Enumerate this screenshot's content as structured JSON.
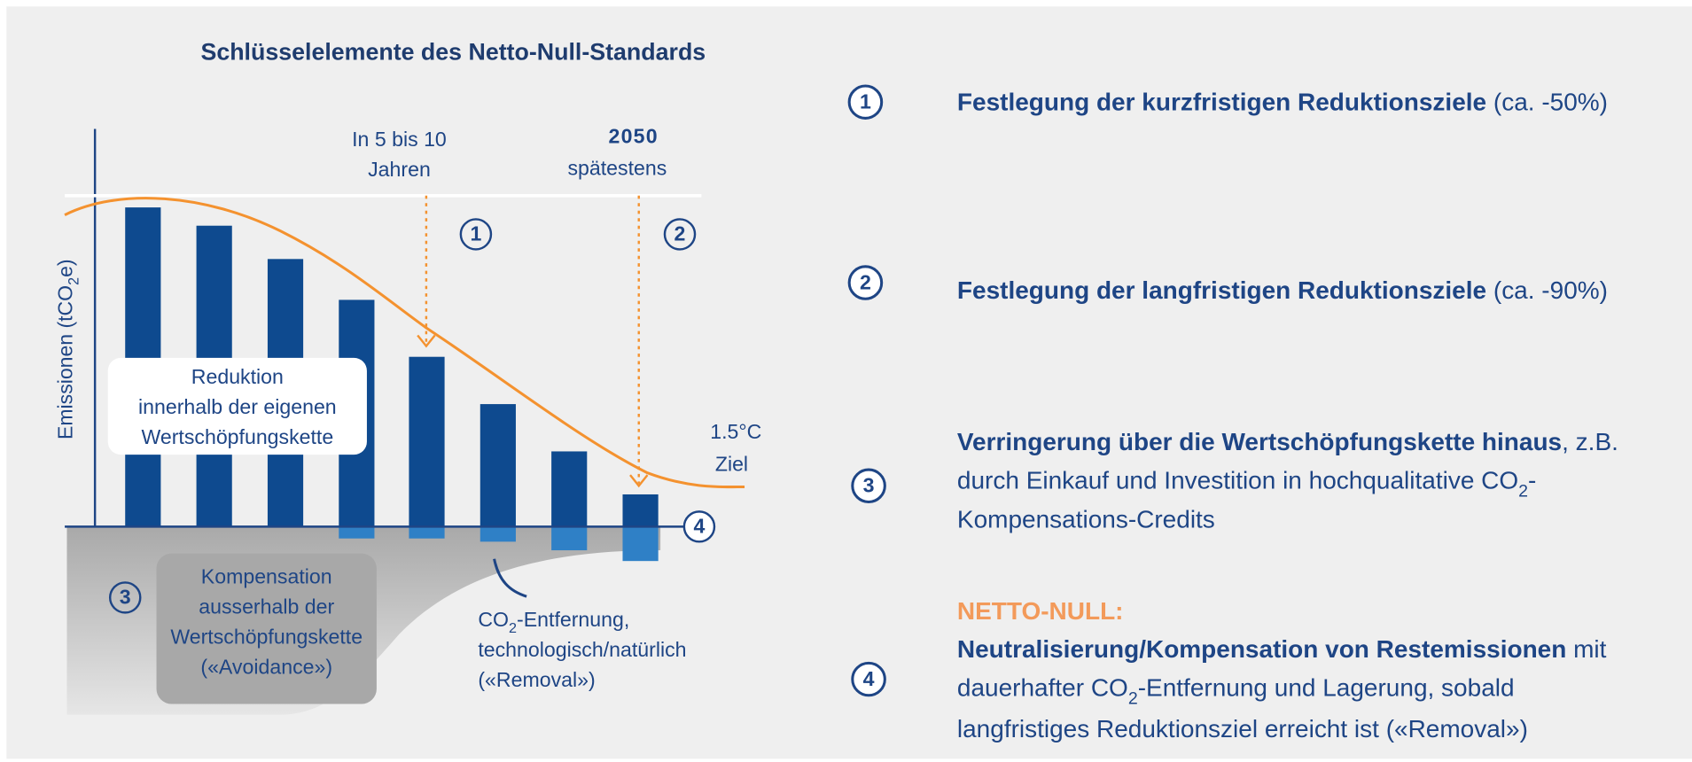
{
  "title": "Schlüsselelemente des Netto-Null-Standards",
  "diagram": {
    "y_axis_label": [
      "Emissionen  (tCO",
      "2",
      "e)"
    ],
    "milestones": [
      {
        "lines": [
          "In 5 bis 10",
          "Jahren"
        ],
        "number": "1"
      },
      {
        "lines": [
          "2050",
          "spätestens"
        ],
        "number": "2"
      }
    ],
    "target": [
      "1.5°C",
      "Ziel"
    ],
    "reduction_box": [
      "Reduktion",
      "innerhalb der eigenen",
      "Wertschöpfungskette"
    ],
    "compensation_box": {
      "number": "3",
      "lines": [
        "Kompensation",
        "ausserhalb der",
        "Wertschöpfungskette",
        "(«Avoidance»)"
      ]
    },
    "removal": {
      "number": "4",
      "lines": [
        [
          "CO",
          "2",
          "-Entfernung,"
        ],
        "technologisch/natürlich",
        "(«Removal»)"
      ]
    }
  },
  "list": [
    {
      "number": "1",
      "bold": "Festlegung der kurzfristigen Reduktionsziele",
      "text": " (ca. -50%)"
    },
    {
      "number": "2",
      "bold": "Festlegung der langfristigen Reduktionsziele",
      "text": " (ca. -90%)"
    },
    {
      "number": "3",
      "bold": "Verringerung über die Wertschöpfungskette hinaus",
      "text": ", z.B.",
      "lines": [
        [
          "durch Einkauf und Investition in hochqualitative CO",
          "2",
          "-"
        ],
        "Kompensations-Credits"
      ]
    },
    {
      "number": "4",
      "heading": "NETTO-NULL:",
      "bold": "Neutralisierung/Kompensation von Restemissionen",
      "text": " mit",
      "lines": [
        [
          "dauerhafter CO",
          "2",
          "-Entfernung und Lagerung, sobald"
        ],
        "langfristiges Reduktionsziel erreicht ist («Removal»)"
      ]
    }
  ]
}
